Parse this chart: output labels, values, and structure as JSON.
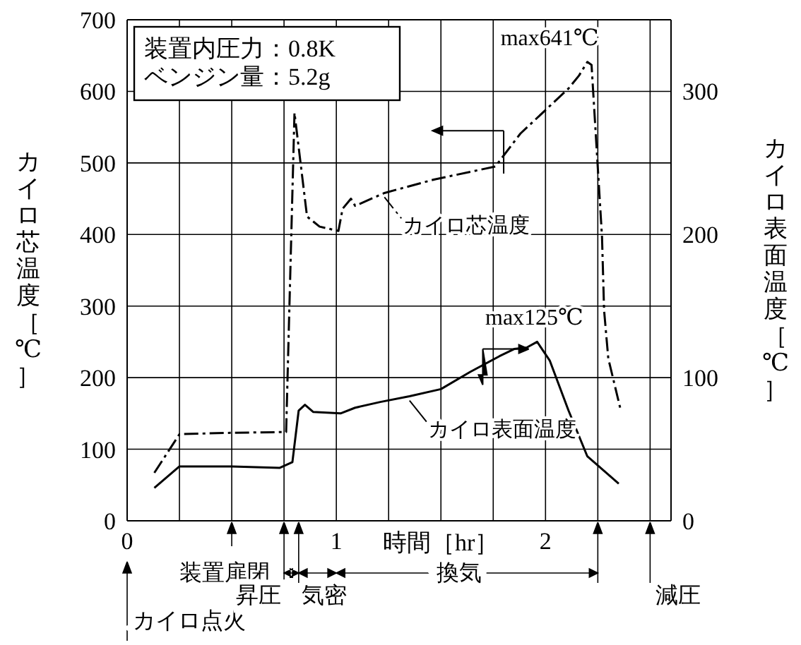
{
  "chart_data": {
    "type": "line",
    "xlabel": "時間［hr］",
    "ylabel": "カイロ芯温度［℃］",
    "y2label": "カイロ表面温度［℃］",
    "xlim": [
      0,
      2.6
    ],
    "xticks": [
      0,
      {
        "value": 0.25,
        "label": null
      },
      {
        "value": 0.5,
        "label": null
      },
      {
        "value": 0.75,
        "label": null
      },
      1,
      {
        "value": 1.25,
        "label": null
      },
      {
        "value": 1.5,
        "label": null
      },
      {
        "value": 1.75,
        "label": null
      },
      2,
      {
        "value": 2.25,
        "label": null
      },
      {
        "value": 2.5,
        "label": null
      }
    ],
    "ylim": [
      0,
      700
    ],
    "yticks": [
      0,
      100,
      200,
      300,
      400,
      500,
      600,
      700
    ],
    "y2lim": [
      0,
      350
    ],
    "y2ticks": [
      0,
      100,
      200,
      300
    ],
    "grid": true,
    "legend": "center",
    "marker": "none",
    "series": [
      {
        "name": "カイロ芯温度",
        "color": "#000000",
        "line_style": "dashdot",
        "x": [
          0.13,
          0.25,
          0.5,
          0.76,
          0.8,
          0.86,
          0.92,
          1.01,
          1.03,
          1.07,
          1.09,
          1.23,
          1.47,
          1.76,
          1.88,
          2.11,
          2.16,
          2.2,
          2.22,
          2.27,
          2.28,
          2.3,
          2.36
        ],
        "values": [
          67,
          121,
          123,
          124,
          570,
          425,
          411,
          405,
          436,
          450,
          440,
          458,
          477,
          495,
          541,
          604,
          622,
          641,
          637,
          397,
          294,
          227,
          154
        ]
      },
      {
        "name": "カイロ表面温度",
        "color": "#000000",
        "line_style": "solid",
        "axis": "y2",
        "x": [
          0.13,
          0.25,
          0.5,
          0.73,
          0.79,
          0.82,
          0.85,
          0.89,
          1.02,
          1.09,
          1.21,
          1.35,
          1.5,
          1.64,
          1.78,
          1.85,
          1.91,
          1.96,
          2.02,
          2.11,
          2.2,
          2.35
        ],
        "values": [
          23,
          38,
          38,
          37,
          41,
          77,
          81,
          76,
          75,
          79,
          83,
          87,
          92,
          104,
          115,
          120,
          121,
          125,
          112,
          77,
          45,
          26
        ]
      }
    ],
    "annotations": [
      "装置内圧力：0.8K",
      "ベンジン量：5.2g",
      {
        "text": "max641℃",
        "x": 2.2,
        "y": 641
      },
      {
        "text": "max125℃",
        "x": 1.96,
        "y": 250
      },
      "カイロ点火",
      "装置扉閉",
      "昇圧",
      "気密",
      "換気",
      "減圧"
    ]
  }
}
